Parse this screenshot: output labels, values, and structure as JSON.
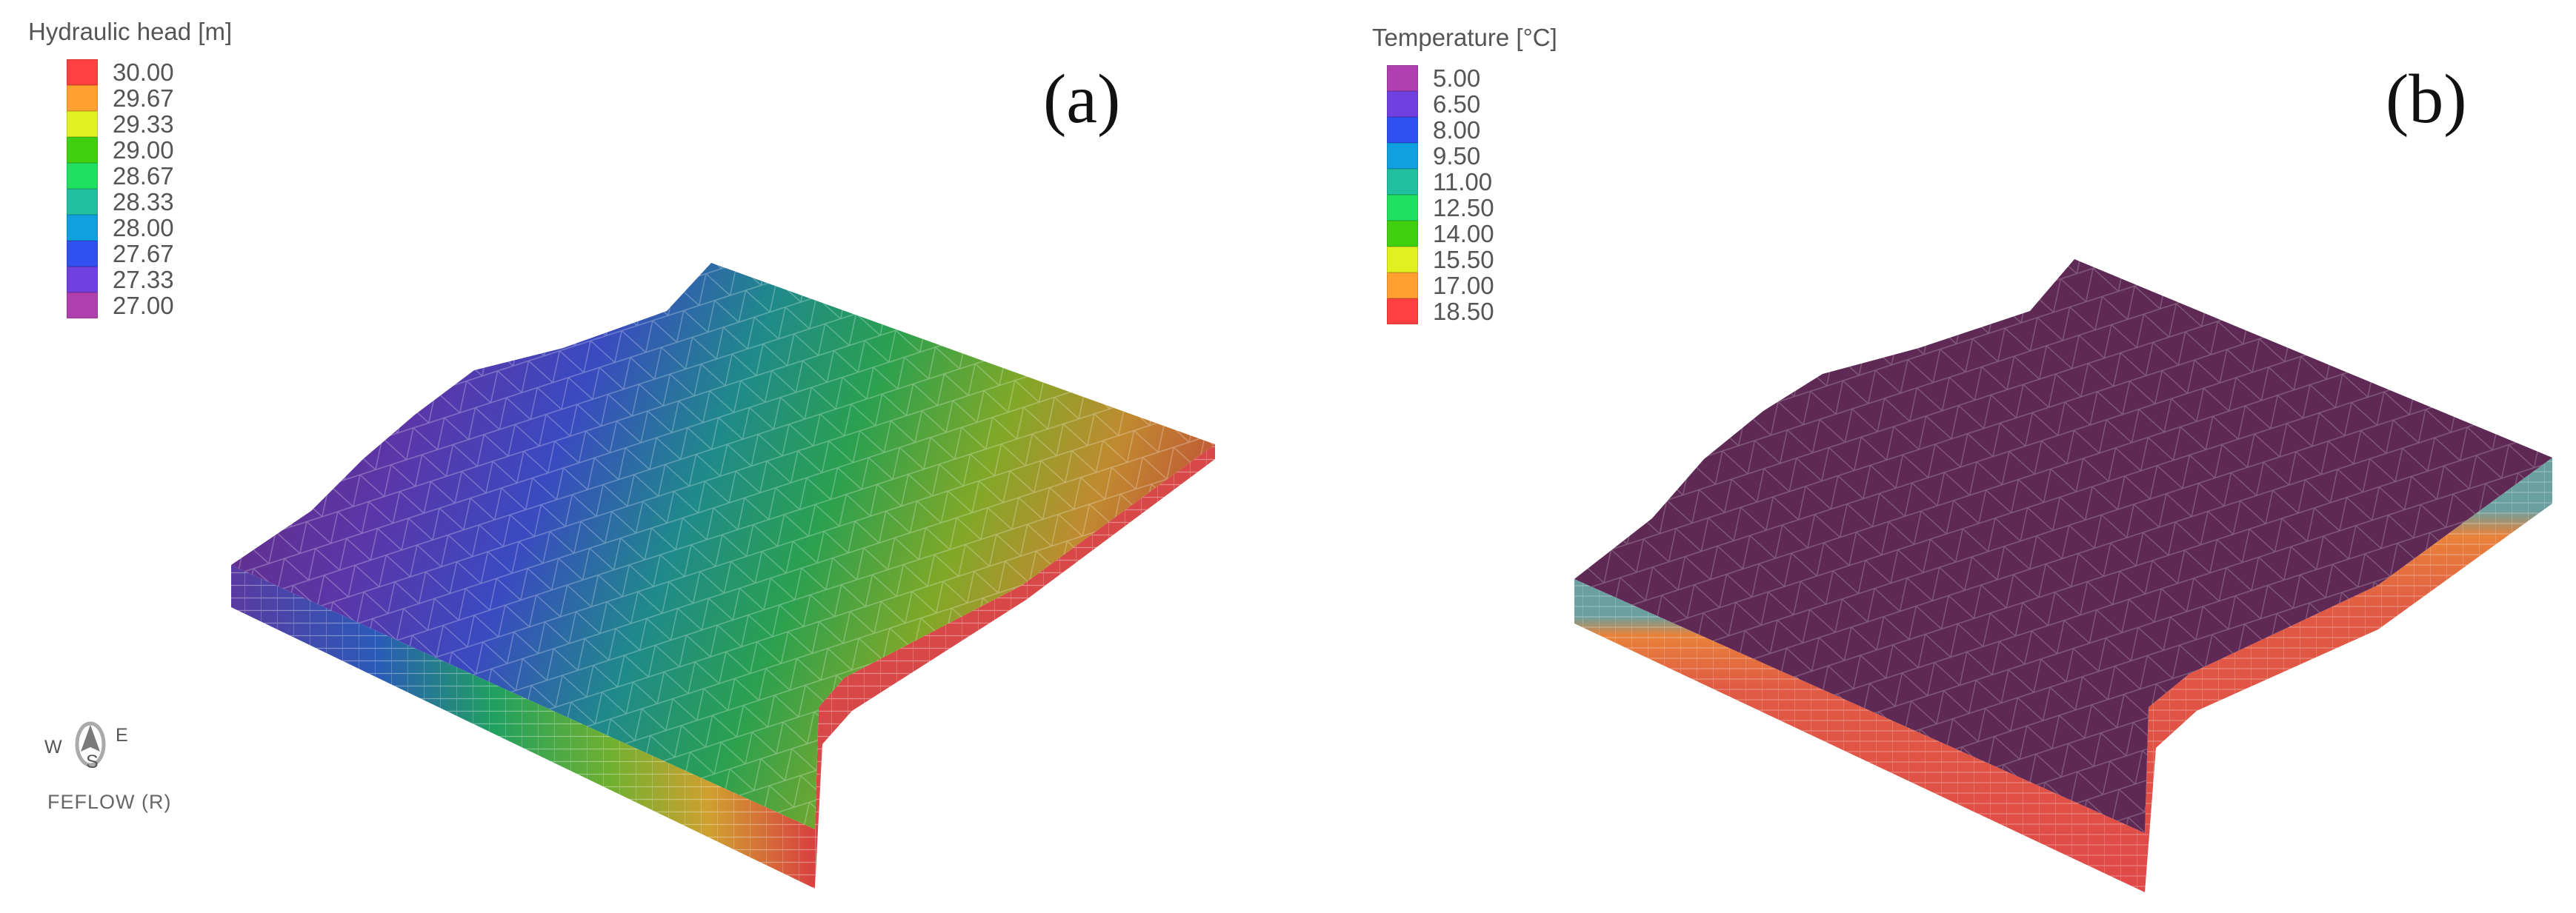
{
  "panel_a": {
    "label": "(a)",
    "legend_title": "Hydraulic head [m]",
    "legend": [
      {
        "value": "30.00",
        "color": "#ff4040"
      },
      {
        "value": "29.67",
        "color": "#ffa030"
      },
      {
        "value": "29.33",
        "color": "#e0f020"
      },
      {
        "value": "29.00",
        "color": "#40d010"
      },
      {
        "value": "28.67",
        "color": "#20e060"
      },
      {
        "value": "28.33",
        "color": "#20c0a0"
      },
      {
        "value": "28.00",
        "color": "#10a0e0"
      },
      {
        "value": "27.67",
        "color": "#3050f0"
      },
      {
        "value": "27.33",
        "color": "#7040e0"
      },
      {
        "value": "27.00",
        "color": "#b040b0"
      }
    ],
    "compass": {
      "west": "W",
      "east": "E",
      "south": "S"
    },
    "software": "FEFLOW (R)"
  },
  "panel_b": {
    "label": "(b)",
    "legend_title": "Temperature [°C]",
    "legend": [
      {
        "value": "5.00",
        "color": "#b040b0"
      },
      {
        "value": "6.50",
        "color": "#7040e0"
      },
      {
        "value": "8.00",
        "color": "#3050f0"
      },
      {
        "value": "9.50",
        "color": "#10a0e0"
      },
      {
        "value": "11.00",
        "color": "#20c0a0"
      },
      {
        "value": "12.50",
        "color": "#20e060"
      },
      {
        "value": "14.00",
        "color": "#40d010"
      },
      {
        "value": "15.50",
        "color": "#e0f020"
      },
      {
        "value": "17.00",
        "color": "#ffa030"
      },
      {
        "value": "18.50",
        "color": "#ff4040"
      }
    ]
  },
  "colors": {
    "surface_b": "#5e2a55",
    "side_red": "#e04848",
    "side_orange": "#e8823a",
    "edge_teal": "#6aa0a0"
  }
}
